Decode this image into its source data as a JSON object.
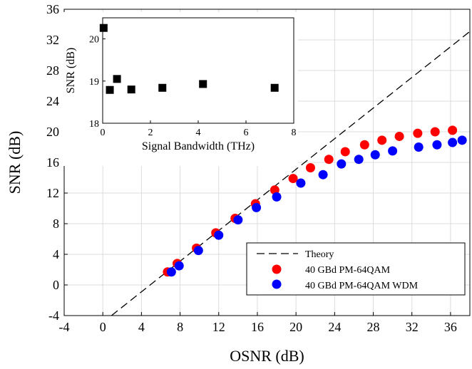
{
  "chart_data": [
    {
      "type": "scatter",
      "xlabel": "OSNR (dB)",
      "ylabel": "SNR (dB)",
      "xlim": [
        -4,
        38
      ],
      "ylim": [
        -4,
        36
      ],
      "xticks": [
        -4,
        0,
        4,
        8,
        12,
        16,
        20,
        24,
        28,
        32,
        36
      ],
      "yticks": [
        -4,
        0,
        4,
        8,
        12,
        16,
        20,
        24,
        28,
        32,
        36
      ],
      "grid": true,
      "legend_position": "bottom-right",
      "series": [
        {
          "name": "Theory",
          "kind": "line",
          "style": "dashed",
          "color": "#000000",
          "x": [
            0.9,
            38
          ],
          "y": [
            -4.0,
            33.1
          ]
        },
        {
          "name": "40 GBd PM-64QAM",
          "kind": "points",
          "color": "#ff0000",
          "x": [
            6.7,
            7.7,
            9.7,
            11.7,
            13.7,
            15.8,
            17.8,
            19.7,
            21.5,
            23.4,
            25.1,
            27.1,
            28.9,
            30.7,
            32.6,
            34.4,
            36.2
          ],
          "y": [
            1.7,
            2.8,
            4.8,
            6.8,
            8.7,
            10.6,
            12.4,
            13.9,
            15.3,
            16.4,
            17.4,
            18.3,
            18.9,
            19.4,
            19.8,
            20.0,
            20.2
          ]
        },
        {
          "name": "40 GBd PM-64QAM WDM",
          "kind": "points",
          "color": "#0000ff",
          "x": [
            7.1,
            7.9,
            9.9,
            12.0,
            14.0,
            15.9,
            18.0,
            20.5,
            22.8,
            24.7,
            26.5,
            28.2,
            30.0,
            32.7,
            34.6,
            36.2,
            37.2
          ],
          "y": [
            1.7,
            2.5,
            4.5,
            6.5,
            8.5,
            10.1,
            11.5,
            13.3,
            14.4,
            15.8,
            16.4,
            17.0,
            17.5,
            18.0,
            18.3,
            18.6,
            18.9
          ]
        }
      ]
    },
    {
      "type": "scatter",
      "xlabel": "Signal Bandwidth (THz)",
      "ylabel": "SNR (dB)",
      "xlim": [
        0,
        8
      ],
      "ylim": [
        18,
        20.5
      ],
      "xticks": [
        0,
        2,
        4,
        6,
        8
      ],
      "yticks": [
        18,
        19,
        20
      ],
      "grid": false,
      "series": [
        {
          "kind": "points",
          "marker": "square",
          "color": "#000000",
          "x": [
            0.04,
            0.3,
            0.6,
            1.2,
            2.5,
            4.2,
            7.2
          ],
          "y": [
            20.26,
            18.79,
            19.05,
            18.8,
            18.84,
            18.93,
            18.84
          ]
        }
      ]
    }
  ]
}
